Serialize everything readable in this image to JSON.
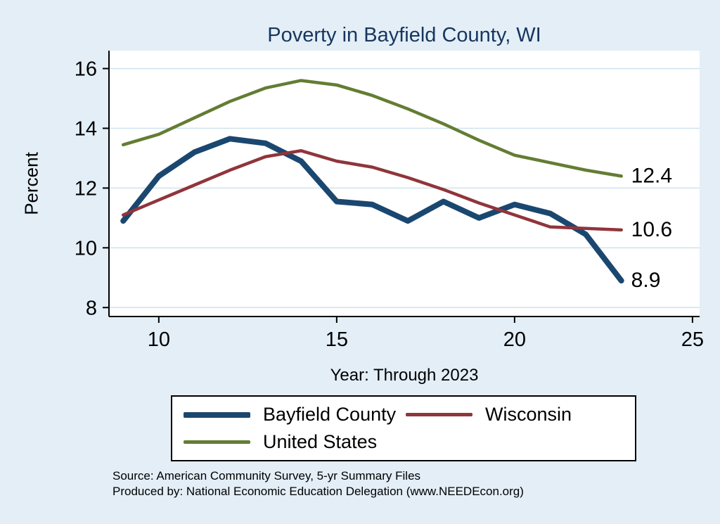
{
  "title": "Poverty in Bayfield County, WI",
  "chart_data": {
    "type": "line",
    "x": [
      9,
      10,
      11,
      12,
      13,
      14,
      15,
      16,
      17,
      18,
      19,
      20,
      21,
      22,
      23
    ],
    "series": [
      {
        "name": "Bayfield County",
        "color": "#1a476f",
        "width": 8,
        "values": [
          10.9,
          12.4,
          13.2,
          13.65,
          13.5,
          12.9,
          11.55,
          11.45,
          10.9,
          11.55,
          11.0,
          11.45,
          11.15,
          10.45,
          8.9
        ],
        "end_label": "8.9"
      },
      {
        "name": "Wisconsin",
        "color": "#90353b",
        "width": 4.5,
        "values": [
          11.1,
          11.6,
          12.1,
          12.6,
          13.05,
          13.25,
          12.9,
          12.7,
          12.35,
          11.95,
          11.5,
          11.1,
          10.7,
          10.65,
          10.6
        ],
        "end_label": "10.6"
      },
      {
        "name": "United States",
        "color": "#637d33",
        "width": 4.5,
        "values": [
          13.45,
          13.8,
          14.35,
          14.9,
          15.35,
          15.6,
          15.45,
          15.1,
          14.65,
          14.15,
          13.6,
          13.1,
          12.85,
          12.6,
          12.4
        ],
        "end_label": "12.4"
      }
    ],
    "title": "Poverty in Bayfield County, WI",
    "xlabel": "Year: Through 2023",
    "ylabel": "Percent",
    "xlim": [
      8.6,
      25.2
    ],
    "ylim": [
      7.7,
      16.6
    ],
    "xticks": [
      10,
      15,
      20,
      25
    ],
    "yticks": [
      8,
      10,
      12,
      14,
      16
    ],
    "grid": "horizontal",
    "legend_position": "bottom"
  },
  "footer": {
    "source": "Source: American Community Survey, 5-yr Summary Files",
    "produced_by": "Produced by: National Economic Education Delegation (www.NEEDEcon.org)"
  },
  "colors": {
    "background": "#e3eef7",
    "plot_background": "#ffffff",
    "grid": "#cfe2ee",
    "axis": "#000000",
    "title": "#17365d",
    "text": "#000000"
  }
}
